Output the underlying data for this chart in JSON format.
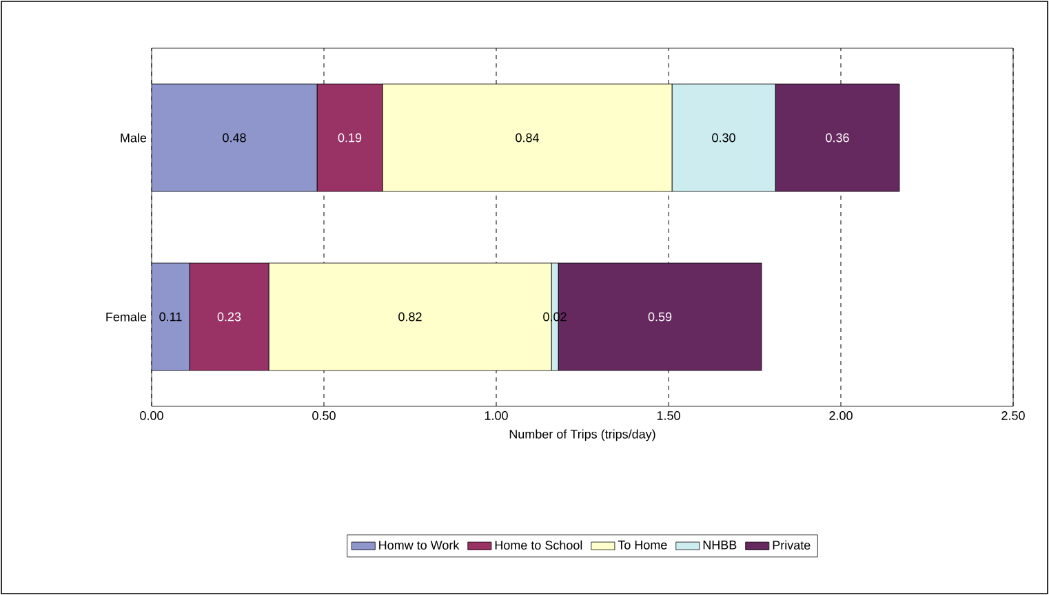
{
  "chart_data": {
    "type": "bar",
    "orientation": "horizontal",
    "stacked": true,
    "categories": [
      "Male",
      "Female"
    ],
    "xlabel": "Number of Trips (trips/day)",
    "xlim": [
      0,
      2.5
    ],
    "xticks": [
      {
        "value": 0,
        "label": "0.00"
      },
      {
        "value": 0.5,
        "label": "0.50"
      },
      {
        "value": 1,
        "label": "1.00"
      },
      {
        "value": 1.5,
        "label": "1.50"
      },
      {
        "value": 2,
        "label": "2.00"
      },
      {
        "value": 2.5,
        "label": "2.50"
      }
    ],
    "grid": "x",
    "legend": "bottom",
    "series": [
      {
        "name": "Homw to Work",
        "color": "#8e96cc",
        "values": [
          0.48,
          0.11
        ],
        "value_labels": [
          "0.48",
          "0.11"
        ]
      },
      {
        "name": "Home to School",
        "color": "#993366",
        "values": [
          0.19,
          0.23
        ],
        "value_labels": [
          "0.19",
          "0.23"
        ]
      },
      {
        "name": "To Home",
        "color": "#ffffcc",
        "values": [
          0.84,
          0.82
        ],
        "value_labels": [
          "0.84",
          "0.82"
        ]
      },
      {
        "name": "NHBB",
        "color": "#ccecf0",
        "values": [
          0.3,
          0.02
        ],
        "value_labels": [
          "0.30",
          "0.02"
        ]
      },
      {
        "name": "Private",
        "color": "#66295f",
        "values": [
          0.36,
          0.59
        ],
        "value_labels": [
          "0.36",
          "0.59"
        ]
      }
    ]
  }
}
